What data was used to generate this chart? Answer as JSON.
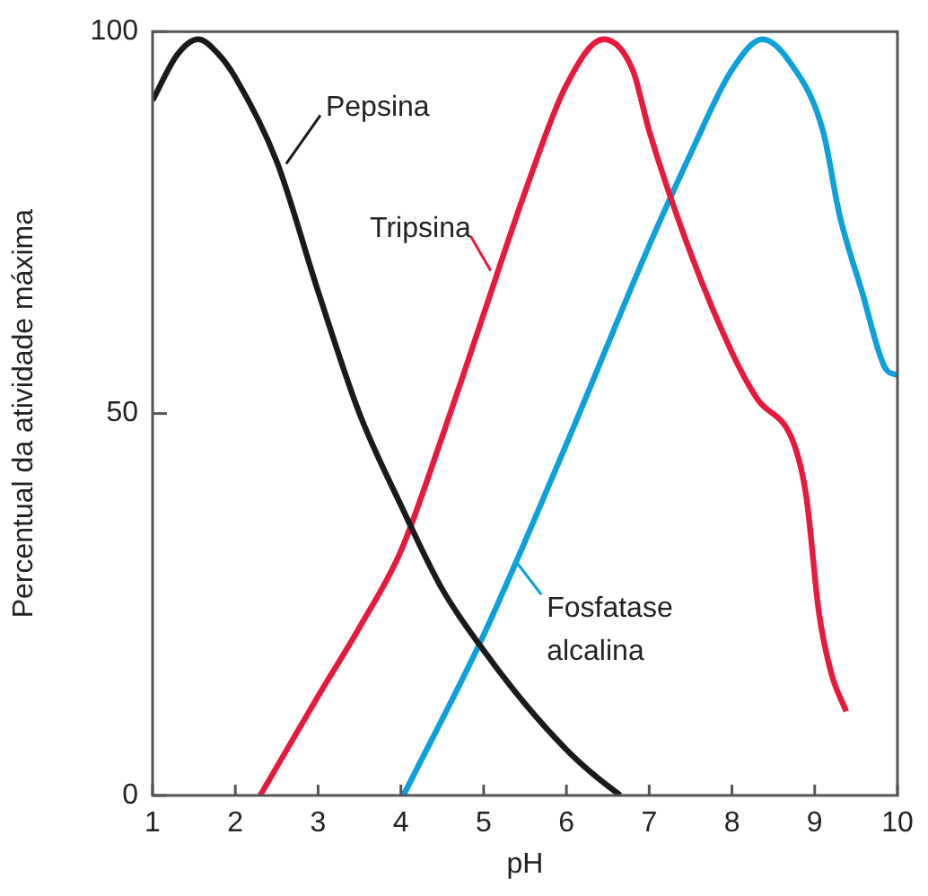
{
  "chart_data": {
    "type": "line",
    "xlabel": "pH",
    "ylabel": "Percentual da atividade máxima",
    "xlim": [
      1,
      10
    ],
    "ylim": [
      0,
      100
    ],
    "xticks": [
      1,
      2,
      3,
      4,
      5,
      6,
      7,
      8,
      9,
      10
    ],
    "yticks": [
      0,
      50,
      100
    ],
    "marker": "none",
    "series": [
      {
        "name": "Pepsina",
        "color": "#1a1a1a",
        "x": [
          1,
          1.3,
          1.55,
          1.8,
          2,
          2.5,
          3,
          3.5,
          4,
          4.5,
          5,
          5.5,
          6,
          6.3,
          6.65
        ],
        "values": [
          91,
          97,
          99,
          97,
          94,
          83,
          66,
          50,
          38,
          27,
          19,
          12,
          6,
          3,
          0
        ]
      },
      {
        "name": "Tripsina",
        "color": "#e8193c",
        "x": [
          2.3,
          3,
          3.5,
          4,
          4.5,
          5,
          5.5,
          6,
          6.45,
          6.8,
          7,
          7.5,
          8,
          8.3,
          8.75,
          8.9,
          9.05,
          9.2,
          9.38
        ],
        "values": [
          0,
          13,
          22,
          32,
          47,
          63,
          79,
          93,
          99,
          95,
          87,
          71,
          58,
          52,
          46,
          39,
          24,
          16,
          11
        ]
      },
      {
        "name": "Fosfatase alcalina",
        "color": "#0ca0dc",
        "x": [
          4.03,
          5,
          6,
          7,
          7.5,
          8,
          8.37,
          8.7,
          9.1,
          9.3,
          9.57,
          9.85,
          10
        ],
        "values": [
          0,
          21,
          46,
          72,
          84,
          95,
          99,
          96,
          87,
          76,
          66,
          56,
          55
        ]
      }
    ]
  }
}
